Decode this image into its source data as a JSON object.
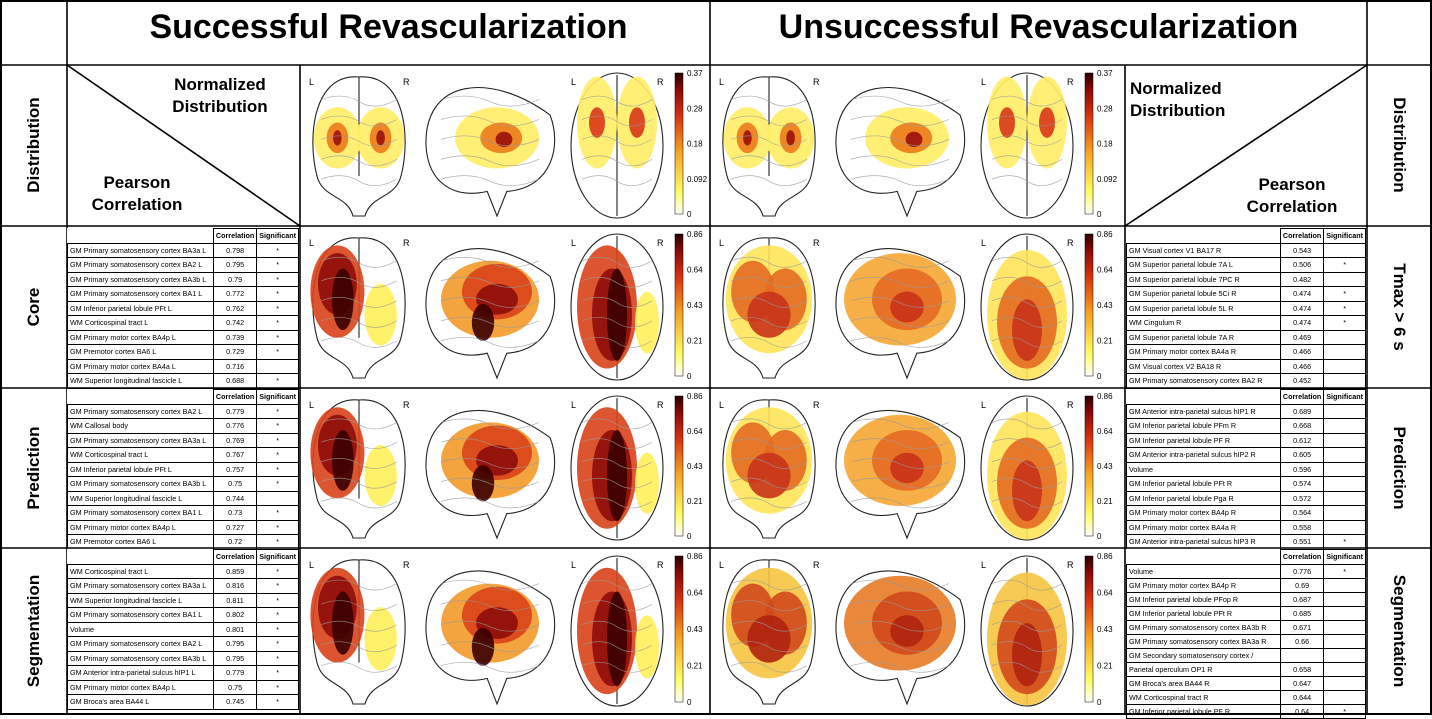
{
  "headers": {
    "successful": "Successful Revascularization",
    "unsuccessful": "Unsuccessful Revascularization"
  },
  "row_labels": {
    "left": [
      "Distribution",
      "Core",
      "Prediction",
      "Segmentation"
    ],
    "right": [
      "Distribution",
      "Tmax > 6 s",
      "Prediction",
      "Segmentation"
    ]
  },
  "diagonal": {
    "top": "Normalized\nDistribution",
    "bottom": "Pearson\nCorrelation"
  },
  "column_headers": {
    "correlation": "Correlation",
    "significant": "Significant"
  },
  "colorbars": {
    "distribution": [
      "0.37",
      "0.28",
      "0.18",
      "0.092",
      "0"
    ],
    "correlation": [
      "0.86",
      "0.64",
      "0.43",
      "0.21",
      "0"
    ]
  },
  "hemisphere": {
    "left": "L",
    "right": "R"
  },
  "tables": {
    "success_core": [
      {
        "region": "GM Primary somatosensory cortex BA3a L",
        "corr": "0.798",
        "sig": "*"
      },
      {
        "region": "GM Primary somatosensory cortex BA2 L",
        "corr": "0.795",
        "sig": "*"
      },
      {
        "region": "GM Primary somatosensory cortex BA3b L",
        "corr": "0.79",
        "sig": "*"
      },
      {
        "region": "GM Primary somatosensory cortex BA1 L",
        "corr": "0.772",
        "sig": "*"
      },
      {
        "region": "GM Inferior parietal lobule PFt L",
        "corr": "0.762",
        "sig": "*"
      },
      {
        "region": "WM Corticospinal tract L",
        "corr": "0.742",
        "sig": "*"
      },
      {
        "region": "GM Primary motor cortex BA4p L",
        "corr": "0.739",
        "sig": "*"
      },
      {
        "region": "GM Premotor cortex BA6 L",
        "corr": "0.729",
        "sig": "*"
      },
      {
        "region": "GM Primary motor cortex BA4a L",
        "corr": "0.716",
        "sig": ""
      },
      {
        "region": "WM Superior longitudinal fascicle L",
        "corr": "0.688",
        "sig": "*"
      }
    ],
    "success_prediction": [
      {
        "region": "GM Primary somatosensory cortex BA2 L",
        "corr": "0.779",
        "sig": "*"
      },
      {
        "region": "WM Callosal body",
        "corr": "0.776",
        "sig": "*"
      },
      {
        "region": "GM Primary somatosensory cortex BA3a L",
        "corr": "0.769",
        "sig": "*"
      },
      {
        "region": "WM Corticospinal tract L",
        "corr": "0.767",
        "sig": "*"
      },
      {
        "region": "GM Inferior parietal lobule PFt L",
        "corr": "0.757",
        "sig": "*"
      },
      {
        "region": "GM Primary somatosensory cortex BA3b L",
        "corr": "0.75",
        "sig": "*"
      },
      {
        "region": "WM Superior longitudinal fascicle L",
        "corr": "0.744",
        "sig": ""
      },
      {
        "region": "GM Primary somatosensory cortex BA1 L",
        "corr": "0.73",
        "sig": "*"
      },
      {
        "region": "GM Primary motor cortex BA4p L",
        "corr": "0.727",
        "sig": "*"
      },
      {
        "region": "GM Premotor cortex BA6 L",
        "corr": "0.72",
        "sig": "*"
      }
    ],
    "success_segmentation": [
      {
        "region": "WM Corticospinal tract L",
        "corr": "0.859",
        "sig": "*"
      },
      {
        "region": "GM Primary somatosensory cortex BA3a L",
        "corr": "0.816",
        "sig": "*"
      },
      {
        "region": "WM Superior longitudinal fascicle L",
        "corr": "0.811",
        "sig": "*"
      },
      {
        "region": "GM Primary somatosensory cortex BA1 L",
        "corr": "0.802",
        "sig": "*"
      },
      {
        "region": "Volume",
        "corr": "0.801",
        "sig": "*"
      },
      {
        "region": "GM Primary somatosensory cortex BA2 L",
        "corr": "0.795",
        "sig": "*"
      },
      {
        "region": "GM Primary somatosensory cortex BA3b L",
        "corr": "0.795",
        "sig": "*"
      },
      {
        "region": "GM Anterior intra-parietal sulcus hIP1 L",
        "corr": "0.779",
        "sig": "*"
      },
      {
        "region": "GM Primary motor cortex BA4p L",
        "corr": "0.75",
        "sig": "*"
      },
      {
        "region": "GM Broca's area BA44 L",
        "corr": "0.745",
        "sig": "*"
      }
    ],
    "fail_core": [
      {
        "region": "GM Visual cortex V1 BA17 R",
        "corr": "0.543",
        "sig": ""
      },
      {
        "region": "GM Superior parietal lobule 7A L",
        "corr": "0.506",
        "sig": "*"
      },
      {
        "region": "GM Superior parietal lobule 7PC R",
        "corr": "0.482",
        "sig": ""
      },
      {
        "region": "GM Superior parietal lobule 5Ci R",
        "corr": "0.474",
        "sig": "*"
      },
      {
        "region": "GM Superior parietal lobule 5L R",
        "corr": "0.474",
        "sig": "*"
      },
      {
        "region": "WM Cingulum R",
        "corr": "0.474",
        "sig": "*"
      },
      {
        "region": "GM Superior parietal lobule 7A R",
        "corr": "0.469",
        "sig": ""
      },
      {
        "region": "GM Primary motor cortex BA4a R",
        "corr": "0.466",
        "sig": ""
      },
      {
        "region": "GM Visual cortex V2 BA18 R",
        "corr": "0.466",
        "sig": ""
      },
      {
        "region": "GM Primary somatosensory cortex BA2 R",
        "corr": "0.452",
        "sig": ""
      }
    ],
    "fail_prediction": [
      {
        "region": "GM Anterior intra-parietal sulcus hIP1 R",
        "corr": "0.689",
        "sig": ""
      },
      {
        "region": "GM Inferior parietal lobule PFm R",
        "corr": "0.668",
        "sig": ""
      },
      {
        "region": "GM Inferior parietal lobule PF R",
        "corr": "0.612",
        "sig": ""
      },
      {
        "region": "GM Anterior intra-parietal sulcus hIP2 R",
        "corr": "0.605",
        "sig": ""
      },
      {
        "region": "Volume",
        "corr": "0.596",
        "sig": ""
      },
      {
        "region": "GM Inferior parietal lobule PFt R",
        "corr": "0.574",
        "sig": ""
      },
      {
        "region": "GM Inferior parietal lobule Pga R",
        "corr": "0.572",
        "sig": ""
      },
      {
        "region": "GM Primary motor cortex BA4p R",
        "corr": "0.564",
        "sig": ""
      },
      {
        "region": "GM Primary motor cortex BA4a R",
        "corr": "0.558",
        "sig": ""
      },
      {
        "region": "GM Anterior intra-parietal sulcus hIP3 R",
        "corr": "0.551",
        "sig": "*"
      }
    ],
    "fail_segmentation": [
      {
        "region": "Volume",
        "corr": "0.776",
        "sig": "*"
      },
      {
        "region": "GM Primary motor cortex BA4p R",
        "corr": "0.69",
        "sig": ""
      },
      {
        "region": "GM Inferior parietal lobule PFop R",
        "corr": "0.687",
        "sig": ""
      },
      {
        "region": "GM Inferior parietal lobule PFt R",
        "corr": "0.685",
        "sig": ""
      },
      {
        "region": "GM Primary somatosensory cortex BA3b R",
        "corr": "0.671",
        "sig": ""
      },
      {
        "region": "GM Primary somatosensory cortex BA3a R",
        "corr": "0.66",
        "sig": ""
      },
      {
        "region": "GM Secondary somatosensory cortex /",
        "corr": "",
        "sig": ""
      },
      {
        "region": "Parietal operculum OP1 R",
        "corr": "0.658",
        "sig": ""
      },
      {
        "region": "GM Broca's area BA44 R",
        "corr": "0.647",
        "sig": ""
      },
      {
        "region": "WM Corticospinal tract R",
        "corr": "0.644",
        "sig": ""
      },
      {
        "region": "GM Inferior parietal lobule PF R",
        "corr": "0.64",
        "sig": "*"
      }
    ]
  }
}
